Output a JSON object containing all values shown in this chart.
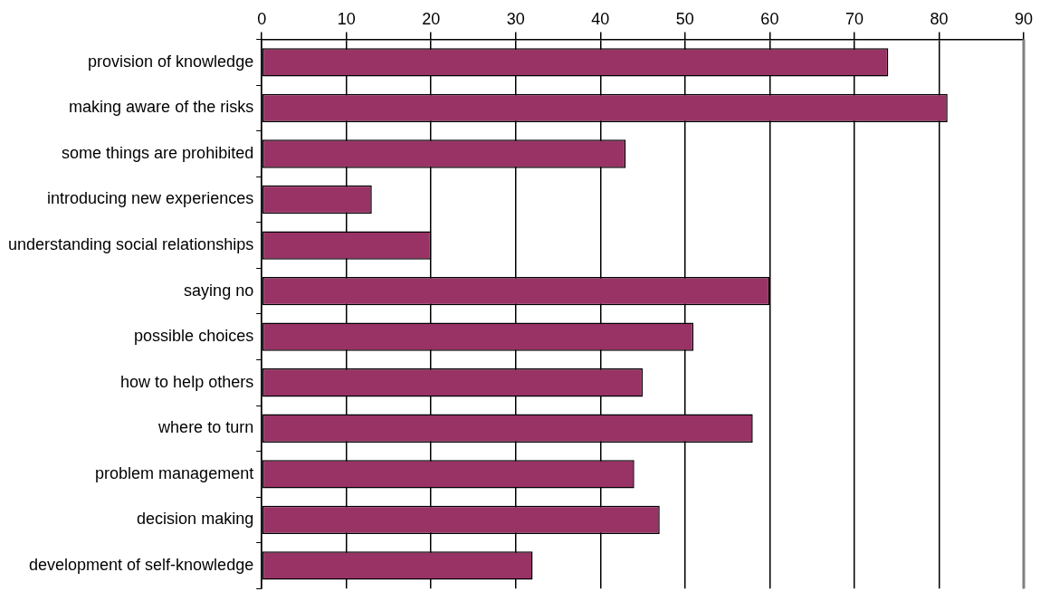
{
  "chart_data": {
    "type": "bar",
    "orientation": "horizontal",
    "categories": [
      "provision of knowledge",
      "making aware of the risks",
      "some things are prohibited",
      "introducing new experiences",
      "understanding social relationships",
      "saying no",
      "possible choices",
      "how to help others",
      "where to turn",
      "problem management",
      "decision making",
      "development of self-knowledge"
    ],
    "values": [
      74,
      81,
      43,
      13,
      20,
      60,
      51,
      45,
      58,
      44,
      47,
      32
    ],
    "color": "#993366",
    "xlim": [
      0,
      90
    ],
    "xticks": [
      0,
      10,
      20,
      30,
      40,
      50,
      60,
      70,
      80,
      90
    ],
    "grid": "x",
    "legend": false
  }
}
